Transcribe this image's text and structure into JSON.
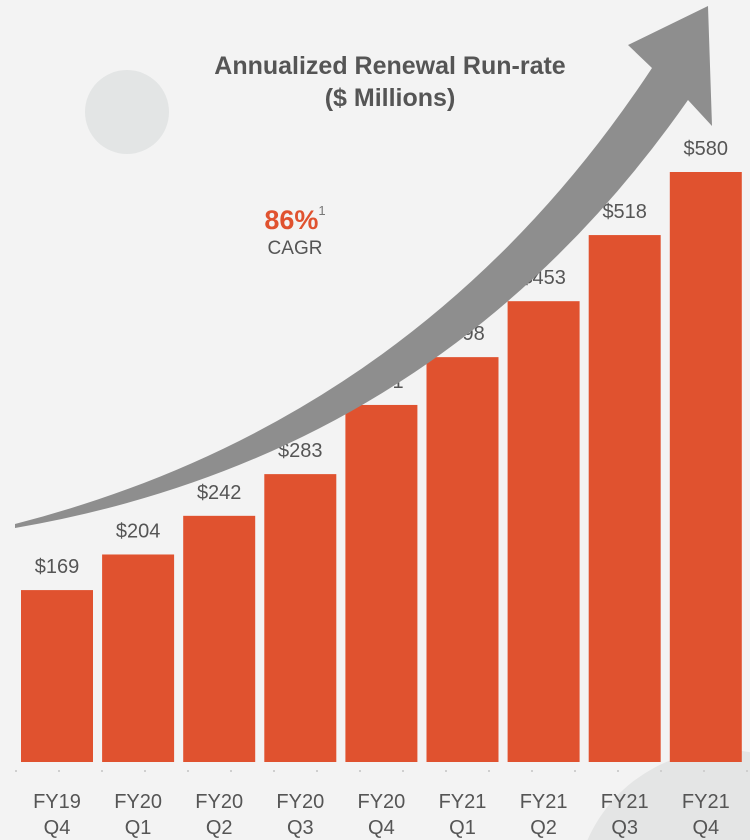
{
  "chart_data": {
    "type": "bar",
    "title": "Annualized Renewal Run-rate",
    "subtitle": "($ Millions)",
    "categories": [
      [
        "FY19",
        "Q4"
      ],
      [
        "FY20",
        "Q1"
      ],
      [
        "FY20",
        "Q2"
      ],
      [
        "FY20",
        "Q3"
      ],
      [
        "FY20",
        "Q4"
      ],
      [
        "FY21",
        "Q1"
      ],
      [
        "FY21",
        "Q2"
      ],
      [
        "FY21",
        "Q3"
      ],
      [
        "FY21",
        "Q4"
      ]
    ],
    "values": [
      169,
      204,
      242,
      283,
      351,
      398,
      453,
      518,
      580
    ],
    "value_labels": [
      "$169",
      "$204",
      "$242",
      "$283",
      "$351",
      "$398",
      "$453",
      "$518",
      "$580"
    ],
    "ylim": [
      0,
      600
    ],
    "xlabel": "",
    "ylabel": "",
    "grid": false,
    "annotation": {
      "value": "86%",
      "footnote": "1",
      "label": "CAGR"
    },
    "colors": {
      "bar": "#e0522f",
      "arrow": "#8c8c8c",
      "text": "#555555",
      "accent": "#e0522f"
    }
  }
}
